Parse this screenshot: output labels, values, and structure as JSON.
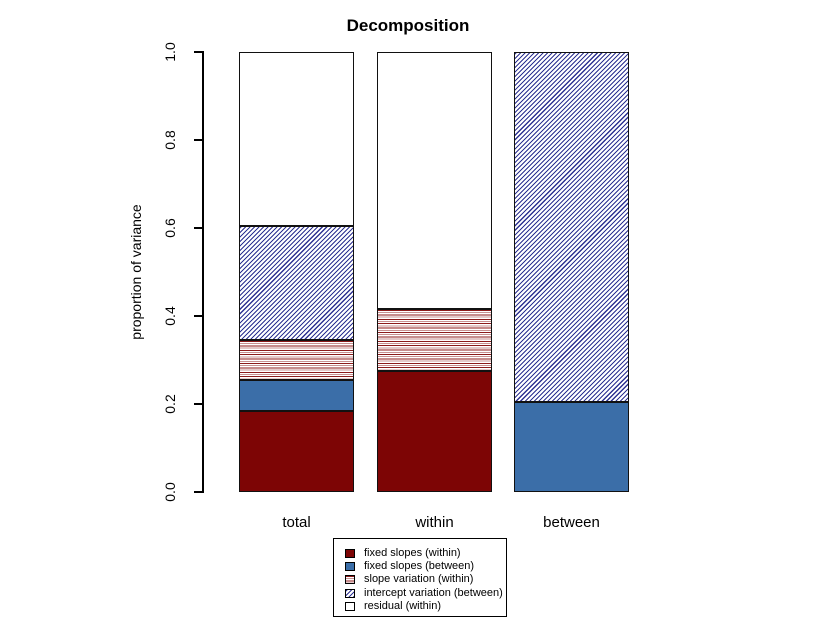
{
  "title": "Decomposition",
  "y_axis": {
    "label": "proportion of variance"
  },
  "x_axis": {
    "categories": [
      "total",
      "within",
      "between"
    ]
  },
  "legend": {
    "items": [
      {
        "key": "fixed_within",
        "label": "fixed slopes (within)"
      },
      {
        "key": "fixed_between",
        "label": "fixed slopes (between)"
      },
      {
        "key": "slope_var",
        "label": "slope variation (within)"
      },
      {
        "key": "intercept_var",
        "label": "intercept variation (between)"
      },
      {
        "key": "residual",
        "label": "residual (within)"
      }
    ]
  },
  "colors": {
    "dark_red": "#7d0505",
    "blue": "#3b6ea8",
    "hatch_navy": "#2d3192",
    "hatch_red": "#8c1a1a",
    "hatch_pink": "#c79090",
    "border": "#000000",
    "background": "#ffffff"
  },
  "chart_data": {
    "type": "bar",
    "stacked": true,
    "title": "Decomposition",
    "ylabel": "proportion of variance",
    "ylim": [
      0,
      1
    ],
    "yticks": [
      0.0,
      0.2,
      0.4,
      0.6,
      0.8,
      1.0
    ],
    "grid": false,
    "legend_position": "bottom-center",
    "categories": [
      "total",
      "within",
      "between"
    ],
    "series": [
      {
        "key": "fixed_within",
        "name": "fixed slopes (within)",
        "values": [
          0.185,
          0.275,
          0.0
        ]
      },
      {
        "key": "fixed_between",
        "name": "fixed slopes (between)",
        "values": [
          0.07,
          0.0,
          0.205
        ]
      },
      {
        "key": "slope_var",
        "name": "slope variation (within)",
        "values": [
          0.09,
          0.14,
          0.0
        ]
      },
      {
        "key": "intercept_var",
        "name": "intercept variation (between)",
        "values": [
          0.26,
          0.0,
          0.795
        ]
      },
      {
        "key": "residual",
        "name": "residual (within)",
        "values": [
          0.395,
          0.585,
          0.0
        ]
      }
    ]
  }
}
